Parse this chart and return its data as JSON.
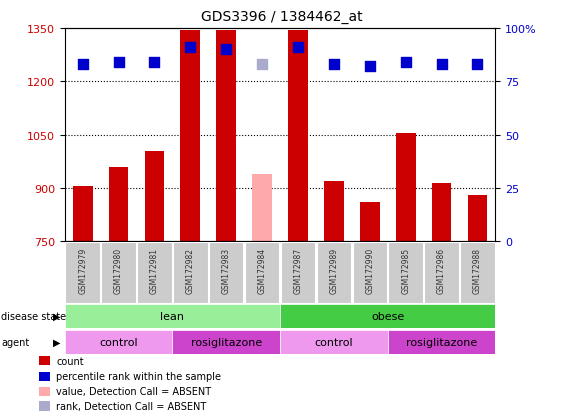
{
  "title": "GDS3396 / 1384462_at",
  "samples": [
    "GSM172979",
    "GSM172980",
    "GSM172981",
    "GSM172982",
    "GSM172983",
    "GSM172984",
    "GSM172987",
    "GSM172989",
    "GSM172990",
    "GSM172985",
    "GSM172986",
    "GSM172988"
  ],
  "bar_values": [
    905,
    960,
    1005,
    1345,
    1345,
    null,
    1345,
    920,
    860,
    1055,
    915,
    880
  ],
  "absent_bar_values": [
    null,
    null,
    null,
    null,
    null,
    940,
    null,
    null,
    null,
    null,
    null,
    null
  ],
  "percentile_values": [
    83,
    84,
    84,
    91,
    90,
    null,
    91,
    83,
    82,
    84,
    83,
    83
  ],
  "absent_percentile_values": [
    null,
    null,
    null,
    null,
    null,
    83,
    null,
    null,
    null,
    null,
    null,
    null
  ],
  "bar_color": "#cc0000",
  "absent_bar_color": "#ffaaaa",
  "dot_color": "#0000cc",
  "absent_dot_color": "#aaaacc",
  "ylim_left": [
    750,
    1350
  ],
  "ylim_right": [
    0,
    100
  ],
  "right_yticks": [
    0,
    25,
    50,
    75,
    100
  ],
  "left_yticks": [
    750,
    900,
    1050,
    1200,
    1350
  ],
  "grid_values": [
    900,
    1050,
    1200
  ],
  "disease_state_groups": [
    {
      "label": "lean",
      "start": 0,
      "end": 6,
      "color": "#99ee99"
    },
    {
      "label": "obese",
      "start": 6,
      "end": 12,
      "color": "#44cc44"
    }
  ],
  "agent_groups": [
    {
      "label": "control",
      "start": 0,
      "end": 3,
      "color": "#ee99ee"
    },
    {
      "label": "rosiglitazone",
      "start": 3,
      "end": 6,
      "color": "#cc44cc"
    },
    {
      "label": "control",
      "start": 6,
      "end": 9,
      "color": "#ee99ee"
    },
    {
      "label": "rosiglitazone",
      "start": 9,
      "end": 12,
      "color": "#cc44cc"
    }
  ],
  "legend_items": [
    {
      "label": "count",
      "color": "#cc0000"
    },
    {
      "label": "percentile rank within the sample",
      "color": "#0000cc"
    },
    {
      "label": "value, Detection Call = ABSENT",
      "color": "#ffaaaa"
    },
    {
      "label": "rank, Detection Call = ABSENT",
      "color": "#aaaacc"
    }
  ],
  "plot_bg_color": "#ffffff",
  "tick_label_color_left": "#cc0000",
  "tick_label_color_right": "#0000cc",
  "bar_width": 0.55,
  "dot_size": 45,
  "sample_bg_color": "#cccccc",
  "sample_text_color": "#333333"
}
